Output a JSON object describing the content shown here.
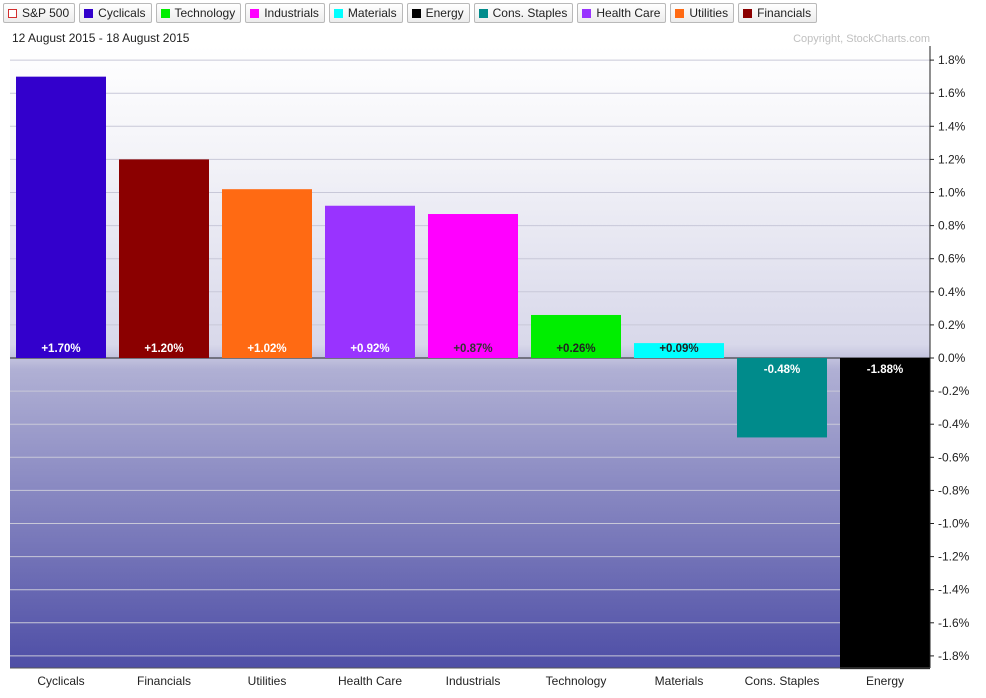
{
  "legend": [
    {
      "label": "S&P 500",
      "color": "#d32f2f",
      "hollow": true
    },
    {
      "label": "Cyclicals",
      "color": "#3300cc"
    },
    {
      "label": "Technology",
      "color": "#00ee00"
    },
    {
      "label": "Industrials",
      "color": "#ff00ff"
    },
    {
      "label": "Materials",
      "color": "#00ffff"
    },
    {
      "label": "Energy",
      "color": "#000000"
    },
    {
      "label": "Cons. Staples",
      "color": "#008b8b"
    },
    {
      "label": "Health Care",
      "color": "#9933ff"
    },
    {
      "label": "Utilities",
      "color": "#ff6a13"
    },
    {
      "label": "Financials",
      "color": "#8b0000"
    }
  ],
  "header": {
    "date_range": "12 August 2015 - 18 August 2015",
    "copyright": "Copyright, StockCharts.com"
  },
  "chart_data": {
    "type": "bar",
    "title": "",
    "xlabel": "",
    "ylabel": "",
    "categories": [
      "Cyclicals",
      "Financials",
      "Utilities",
      "Health Care",
      "Industrials",
      "Technology",
      "Materials",
      "Cons. Staples",
      "Energy"
    ],
    "values": [
      1.7,
      1.2,
      1.02,
      0.92,
      0.87,
      0.26,
      0.09,
      -0.48,
      -1.88
    ],
    "data_labels": [
      "+1.70%",
      "+1.20%",
      "+1.02%",
      "+0.92%",
      "+0.87%",
      "+0.26%",
      "+0.09%",
      "-0.48%",
      "-1.88%"
    ],
    "colors": [
      "#3300cc",
      "#8b0000",
      "#ff6a13",
      "#9933ff",
      "#ff00ff",
      "#00ee00",
      "#00ffff",
      "#008b8b",
      "#000000"
    ],
    "label_colors": [
      "#ffffff",
      "#ffffff",
      "#ffffff",
      "#ffffff",
      "#333333",
      "#222222",
      "#222222",
      "#ffffff",
      "#ffffff"
    ],
    "y_ticks": [
      "1.8%",
      "1.6%",
      "1.4%",
      "1.2%",
      "1.0%",
      "0.8%",
      "0.6%",
      "0.4%",
      "0.2%",
      "0.0%",
      "-0.2%",
      "-0.4%",
      "-0.6%",
      "-0.8%",
      "-1.0%",
      "-1.2%",
      "-1.4%",
      "-1.6%",
      "-1.8%"
    ],
    "y_tick_values": [
      1.8,
      1.6,
      1.4,
      1.2,
      1.0,
      0.8,
      0.6,
      0.4,
      0.2,
      0.0,
      -0.2,
      -0.4,
      -0.6,
      -0.8,
      -1.0,
      -1.2,
      -1.4,
      -1.6,
      -1.8
    ],
    "ylim": [
      -1.88,
      1.8
    ],
    "grid": true,
    "y_axis_side": "right"
  }
}
